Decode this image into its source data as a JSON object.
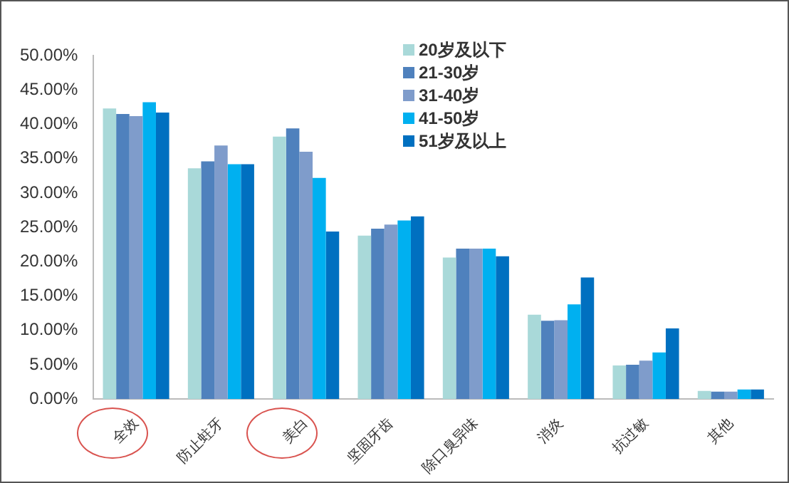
{
  "chart_data": {
    "type": "bar",
    "categories": [
      "全效",
      "防止蛀牙",
      "美白",
      "坚固牙齿",
      "除口臭异味",
      "消炎",
      "抗过敏",
      "其他"
    ],
    "series": [
      {
        "name": "20岁及以下",
        "color": "#a9d9d9",
        "values": [
          42.3,
          33.6,
          38.2,
          23.8,
          20.6,
          12.3,
          4.9,
          1.2
        ]
      },
      {
        "name": "21-30岁",
        "color": "#4f81bd",
        "values": [
          41.5,
          34.6,
          39.4,
          24.8,
          21.9,
          11.4,
          5.0,
          1.1
        ]
      },
      {
        "name": "31-40岁",
        "color": "#7f9ccb",
        "values": [
          41.2,
          36.9,
          36.0,
          25.4,
          21.9,
          11.5,
          5.6,
          1.1
        ]
      },
      {
        "name": "41-50岁",
        "color": "#00b0f0",
        "values": [
          43.2,
          34.2,
          32.2,
          26.0,
          21.9,
          13.8,
          6.8,
          1.4
        ]
      },
      {
        "name": "51岁及以上",
        "color": "#0070c0",
        "values": [
          41.7,
          34.2,
          24.4,
          26.6,
          20.8,
          17.7,
          10.3,
          1.4
        ]
      }
    ],
    "ylim": [
      0,
      50
    ],
    "yticks": [
      {
        "value": 0,
        "label": "0.00%"
      },
      {
        "value": 5,
        "label": "5.00%"
      },
      {
        "value": 10,
        "label": "10.00%"
      },
      {
        "value": 15,
        "label": "15.00%"
      },
      {
        "value": 20,
        "label": "20.00%"
      },
      {
        "value": 25,
        "label": "25.00%"
      },
      {
        "value": 30,
        "label": "30.00%"
      },
      {
        "value": 35,
        "label": "35.00%"
      },
      {
        "value": 40,
        "label": "40.00%"
      },
      {
        "value": 45,
        "label": "45.00%"
      },
      {
        "value": 50,
        "label": "50.00%"
      }
    ],
    "grid": false,
    "legend": "top right"
  }
}
